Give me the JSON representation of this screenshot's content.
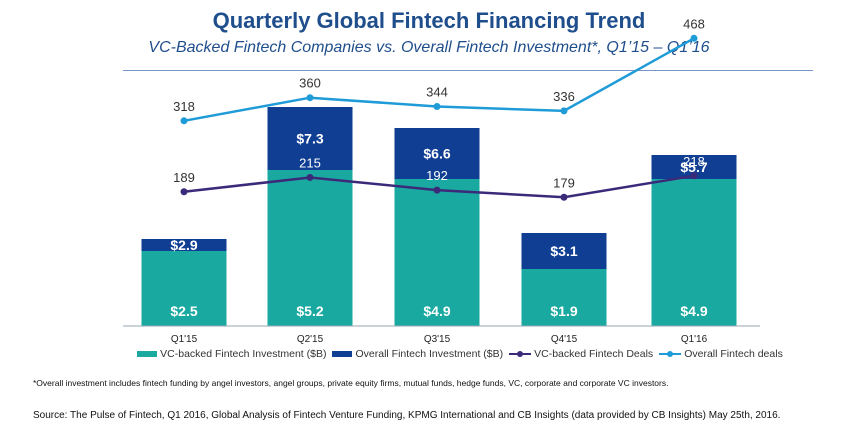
{
  "header": {
    "title": "Quarterly Global Fintech Financing Trend",
    "subtitle": "VC-Backed Fintech Companies vs. Overall Fintech Investment*, Q1’15 – Q1’16"
  },
  "chart_data": {
    "type": "bar",
    "categories": [
      "Q1'15",
      "Q2'15",
      "Q3'15",
      "Q4'15",
      "Q1'16"
    ],
    "bar_series": [
      {
        "name": "VC-backed Fintech Investment ($B)",
        "values": [
          2.5,
          5.2,
          4.9,
          1.9,
          4.9
        ],
        "labels": [
          "$2.5",
          "$5.2",
          "$4.9",
          "$1.9",
          "$4.9"
        ],
        "color": "#1aa9a0"
      },
      {
        "name": "Overall Fintech Investment ($B)",
        "values": [
          2.9,
          7.3,
          6.6,
          3.1,
          5.7
        ],
        "labels": [
          "$2.9",
          "$7.3",
          "$6.6",
          "$3.1",
          "$5.7"
        ],
        "color": "#0f3e93"
      }
    ],
    "line_series": [
      {
        "name": "VC-backed Fintech Deals",
        "values": [
          189,
          215,
          192,
          179,
          218
        ],
        "color": "#3b2a7a"
      },
      {
        "name": "Overall Fintech deals",
        "values": [
          318,
          360,
          344,
          336,
          468
        ],
        "color": "#1f9bd8"
      }
    ],
    "grid": false,
    "legend_position": "bottom"
  },
  "footnote": "*Overall investment includes fintech funding by angel investors, angel groups, private equity firms, mutual funds, hedge funds, VC, corporate and corporate VC investors.",
  "source": "Source: The Pulse of Fintech, Q1 2016, Global Analysis of Fintech Venture Funding, KPMG International and CB Insights (data provided by CB Insights) May 25th, 2016."
}
